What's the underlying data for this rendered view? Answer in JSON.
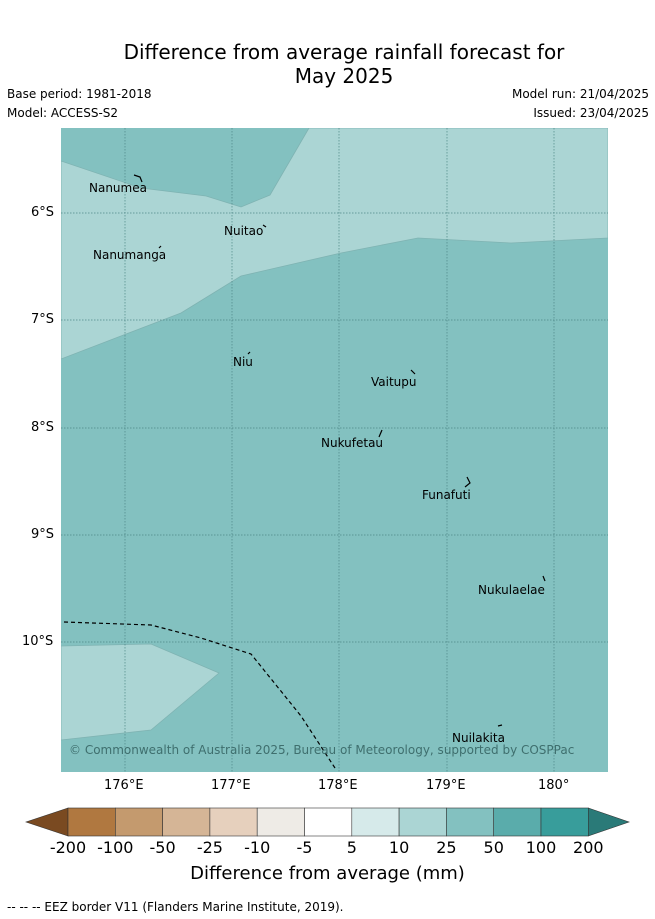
{
  "title_line1": "Difference from average rainfall forecast for",
  "title_line2": "May 2025",
  "meta": {
    "base_period": "Base period: 1981-2018",
    "model": "Model: ACCESS-S2",
    "model_run": "Model run: 21/04/2025",
    "issued": "Issued: 23/04/2025"
  },
  "map": {
    "lon_range": [
      175.43,
      180.5
    ],
    "lat_range": [
      -11.2,
      -5.22
    ],
    "lat_labels": [
      "6°S",
      "7°S",
      "8°S",
      "9°S",
      "10°S"
    ],
    "lon_labels": [
      "176°E",
      "177°E",
      "178°E",
      "179°E",
      "180°"
    ],
    "places": [
      "Nanumea",
      "Nuitao",
      "Nanumanga",
      "Niu",
      "Vaitupu",
      "Nukufetau",
      "Funafuti",
      "Nukulaelae",
      "Nuilakita"
    ],
    "copyright": "© Commonwealth of Australia 2025, Bureau of Meteorology, supported by COSPPac",
    "colors": {
      "r10_25": "#abd5d4",
      "r25_50": "#83c1c0"
    }
  },
  "colorbar": {
    "ticks": [
      "-200",
      "-100",
      "-50",
      "-25",
      "-10",
      "-5",
      "5",
      "10",
      "25",
      "50",
      "100",
      "200"
    ],
    "colors": [
      "#7a4a21",
      "#b07840",
      "#c49a6e",
      "#d5b596",
      "#e6d0bd",
      "#eeebe6",
      "#ffffff",
      "#d6eaea",
      "#abd5d4",
      "#83c1c0",
      "#5aacab",
      "#389d9b",
      "#2a7a78"
    ],
    "label": "Difference from average (mm)"
  },
  "footnote": "-- -- -- EEZ border V11 (Flanders Marine Institute, 2019)."
}
